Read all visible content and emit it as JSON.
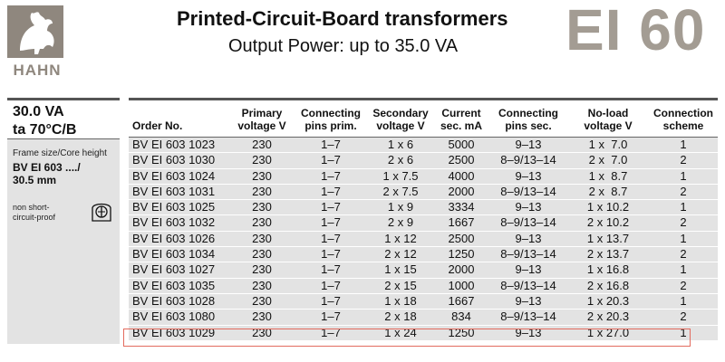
{
  "header": {
    "logo_text": "HAHN",
    "title": "Printed-Circuit-Board transformers",
    "subtitle": "Output Power: up to 35.0 VA",
    "code": "EI 60"
  },
  "left_panel": {
    "va": "30.0 VA",
    "ta": "ta 70°C/B",
    "frame_label": "Frame size/Core height",
    "frame_value_1": "BV EI 603 ..../",
    "frame_value_2": "30.5 mm",
    "nsc_1": "non short-",
    "nsc_2": "circuit-proof",
    "nsc_icon": "fuse-transformer-icon"
  },
  "table": {
    "headers": [
      {
        "l1": "Order No.",
        "l2": ""
      },
      {
        "l1": "Primary",
        "l2": "voltage V"
      },
      {
        "l1": "Connecting",
        "l2": "pins prim."
      },
      {
        "l1": "Secondary",
        "l2": "voltage V"
      },
      {
        "l1": "Current",
        "l2": "sec. mA"
      },
      {
        "l1": "Connecting",
        "l2": "pins sec."
      },
      {
        "l1": "No-load",
        "l2": "voltage V"
      },
      {
        "l1": "Connection",
        "l2": "scheme"
      }
    ],
    "rows": [
      [
        "BV EI 603 1023",
        "230",
        "1–7",
        "1 x 6",
        "5000",
        "9–13",
        "1 x  7.0",
        "1"
      ],
      [
        "BV EI 603 1030",
        "230",
        "1–7",
        "2 x 6",
        "2500",
        "8–9/13–14",
        "2 x  7.0",
        "2"
      ],
      [
        "BV EI 603 1024",
        "230",
        "1–7",
        "1 x 7.5",
        "4000",
        "9–13",
        "1 x  8.7",
        "1"
      ],
      [
        "BV EI 603 1031",
        "230",
        "1–7",
        "2 x 7.5",
        "2000",
        "8–9/13–14",
        "2 x  8.7",
        "2"
      ],
      [
        "BV EI 603 1025",
        "230",
        "1–7",
        "1 x 9",
        "3334",
        "9–13",
        "1 x 10.2",
        "1"
      ],
      [
        "BV EI 603 1032",
        "230",
        "1–7",
        "2 x 9",
        "1667",
        "8–9/13–14",
        "2 x 10.2",
        "2"
      ],
      [
        "BV EI 603 1026",
        "230",
        "1–7",
        "1 x 12",
        "2500",
        "9–13",
        "1 x 13.7",
        "1"
      ],
      [
        "BV EI 603 1034",
        "230",
        "1–7",
        "2 x 12",
        "1250",
        "8–9/13–14",
        "2 x 13.7",
        "2"
      ],
      [
        "BV EI 603 1027",
        "230",
        "1–7",
        "1 x 15",
        "2000",
        "9–13",
        "1 x 16.8",
        "1"
      ],
      [
        "BV EI 603 1035",
        "230",
        "1–7",
        "2 x 15",
        "1000",
        "8–9/13–14",
        "2 x 16.8",
        "2"
      ],
      [
        "BV EI 603 1028",
        "230",
        "1–7",
        "1 x 18",
        "1667",
        "9–13",
        "1 x 20.3",
        "1"
      ],
      [
        "BV EI 603 1080",
        "230",
        "1–7",
        "2 x 18",
        "834",
        "8–9/13–14",
        "2 x 20.3",
        "2"
      ],
      [
        "BV EI 603 1029",
        "230",
        "1–7",
        "1 x 24",
        "1250",
        "9–13",
        "1 x 27.0",
        "1"
      ]
    ]
  },
  "colors": {
    "logo": "#8f877e",
    "code": "#a39c93",
    "row_bg": "#e3e3e3",
    "highlight": "#e36b5e"
  }
}
